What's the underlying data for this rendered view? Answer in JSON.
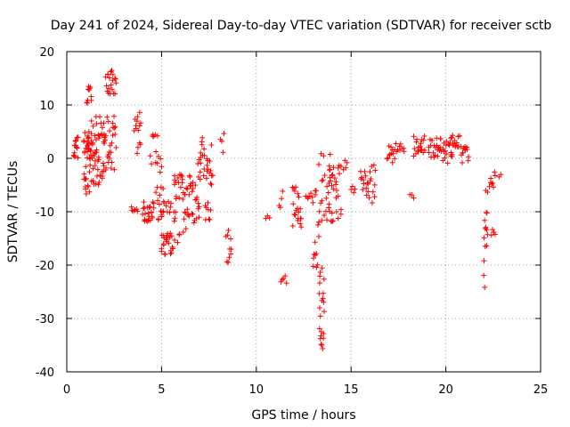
{
  "chart_data": {
    "type": "scatter",
    "title": "Day 241 of 2024, Sidereal Day-to-day VTEC variation (SDTVAR) for receiver sctb",
    "xlabel": "GPS time / hours",
    "ylabel": "SDTVAR / TECUs",
    "xlim": [
      0,
      25
    ],
    "ylim": [
      -40,
      20
    ],
    "xticks": [
      0,
      5,
      10,
      15,
      20,
      25
    ],
    "yticks": [
      -40,
      -30,
      -20,
      -10,
      0,
      10,
      20
    ],
    "grid": true,
    "marker": "+",
    "series_color": "#ff0000",
    "clusters": [
      {
        "x0": 0.35,
        "x1": 0.6,
        "ymin": 0,
        "ymax": 4,
        "n": 14
      },
      {
        "x0": 0.9,
        "x1": 1.3,
        "ymin": -7,
        "ymax": 5,
        "n": 40
      },
      {
        "x0": 1.05,
        "x1": 1.3,
        "ymin": 10,
        "ymax": 13.5,
        "n": 10
      },
      {
        "x0": 1.3,
        "x1": 1.95,
        "ymin": -6,
        "ymax": 8,
        "n": 45
      },
      {
        "x0": 1.95,
        "x1": 2.6,
        "ymin": -3,
        "ymax": 8,
        "n": 30
      },
      {
        "x0": 2.05,
        "x1": 2.6,
        "ymin": 12,
        "ymax": 16.5,
        "n": 20
      },
      {
        "x0": 3.4,
        "x1": 3.75,
        "ymin": -10,
        "ymax": -9,
        "n": 6
      },
      {
        "x0": 3.55,
        "x1": 3.9,
        "ymin": 5,
        "ymax": 9,
        "n": 10
      },
      {
        "x0": 3.7,
        "x1": 3.9,
        "ymin": 0,
        "ymax": 3,
        "n": 4
      },
      {
        "x0": 4.0,
        "x1": 4.6,
        "ymin": -12,
        "ymax": -8,
        "n": 25
      },
      {
        "x0": 4.4,
        "x1": 5.0,
        "ymin": -3,
        "ymax": 6,
        "n": 14
      },
      {
        "x0": 4.7,
        "x1": 5.1,
        "ymin": -12,
        "ymax": -5,
        "n": 12
      },
      {
        "x0": 5.0,
        "x1": 5.6,
        "ymin": -18,
        "ymax": -14,
        "n": 25
      },
      {
        "x0": 5.0,
        "x1": 5.5,
        "ymin": -11,
        "ymax": -8,
        "n": 10
      },
      {
        "x0": 5.6,
        "x1": 6.6,
        "ymin": -16,
        "ymax": -3,
        "n": 45
      },
      {
        "x0": 6.6,
        "x1": 7.0,
        "ymin": -13,
        "ymax": -4,
        "n": 15
      },
      {
        "x0": 6.9,
        "x1": 7.7,
        "ymin": -5,
        "ymax": 4,
        "n": 30
      },
      {
        "x0": 7.3,
        "x1": 7.6,
        "ymin": -12,
        "ymax": -8,
        "n": 8
      },
      {
        "x0": 8.1,
        "x1": 8.3,
        "ymin": 1,
        "ymax": 5.5,
        "n": 4
      },
      {
        "x0": 8.4,
        "x1": 8.7,
        "ymin": -20.5,
        "ymax": -13.5,
        "n": 10
      },
      {
        "x0": 10.5,
        "x1": 10.7,
        "ymin": -11.5,
        "ymax": -10.5,
        "n": 3
      },
      {
        "x0": 11.2,
        "x1": 11.4,
        "ymin": -11,
        "ymax": -6,
        "n": 4
      },
      {
        "x0": 11.3,
        "x1": 11.6,
        "ymin": -23.5,
        "ymax": -22,
        "n": 5
      },
      {
        "x0": 11.9,
        "x1": 12.4,
        "ymin": -13,
        "ymax": -5,
        "n": 20
      },
      {
        "x0": 12.6,
        "x1": 13.2,
        "ymin": -9,
        "ymax": -6,
        "n": 10
      },
      {
        "x0": 13.0,
        "x1": 13.3,
        "ymin": -22,
        "ymax": -12,
        "n": 10
      },
      {
        "x0": 13.3,
        "x1": 13.6,
        "ymin": -36.5,
        "ymax": -20,
        "n": 22
      },
      {
        "x0": 13.3,
        "x1": 14.0,
        "ymin": -12,
        "ymax": 1,
        "n": 25
      },
      {
        "x0": 13.8,
        "x1": 14.5,
        "ymin": -12,
        "ymax": -1,
        "n": 25
      },
      {
        "x0": 14.6,
        "x1": 14.8,
        "ymin": -3,
        "ymax": 0,
        "n": 4
      },
      {
        "x0": 15.0,
        "x1": 15.2,
        "ymin": -6.5,
        "ymax": -5,
        "n": 4
      },
      {
        "x0": 15.5,
        "x1": 15.9,
        "ymin": -7,
        "ymax": -2,
        "n": 12
      },
      {
        "x0": 15.9,
        "x1": 16.3,
        "ymin": -9,
        "ymax": -1,
        "n": 12
      },
      {
        "x0": 16.9,
        "x1": 17.3,
        "ymin": -1,
        "ymax": 1,
        "n": 8
      },
      {
        "x0": 17.0,
        "x1": 17.2,
        "ymin": 1.5,
        "ymax": 2.5,
        "n": 3
      },
      {
        "x0": 17.3,
        "x1": 17.8,
        "ymin": 1,
        "ymax": 3,
        "n": 10
      },
      {
        "x0": 18.1,
        "x1": 18.3,
        "ymin": -7.5,
        "ymax": -6.5,
        "n": 3
      },
      {
        "x0": 18.3,
        "x1": 18.9,
        "ymin": 0,
        "ymax": 5,
        "n": 18
      },
      {
        "x0": 19.1,
        "x1": 19.7,
        "ymin": 0,
        "ymax": 4.5,
        "n": 18
      },
      {
        "x0": 19.7,
        "x1": 20.4,
        "ymin": -1,
        "ymax": 4,
        "n": 22
      },
      {
        "x0": 20.3,
        "x1": 20.8,
        "ymin": 2,
        "ymax": 5.5,
        "n": 12
      },
      {
        "x0": 20.8,
        "x1": 21.2,
        "ymin": -1,
        "ymax": 4,
        "n": 12
      },
      {
        "x0": 22.0,
        "x1": 22.2,
        "ymin": -24.5,
        "ymax": -5,
        "n": 15
      },
      {
        "x0": 22.3,
        "x1": 22.6,
        "ymin": -5.5,
        "ymax": -1.5,
        "n": 8
      },
      {
        "x0": 22.4,
        "x1": 22.6,
        "ymin": -14.5,
        "ymax": -13,
        "n": 4
      },
      {
        "x0": 22.8,
        "x1": 22.9,
        "ymin": -3.5,
        "ymax": -3,
        "n": 2
      }
    ]
  }
}
